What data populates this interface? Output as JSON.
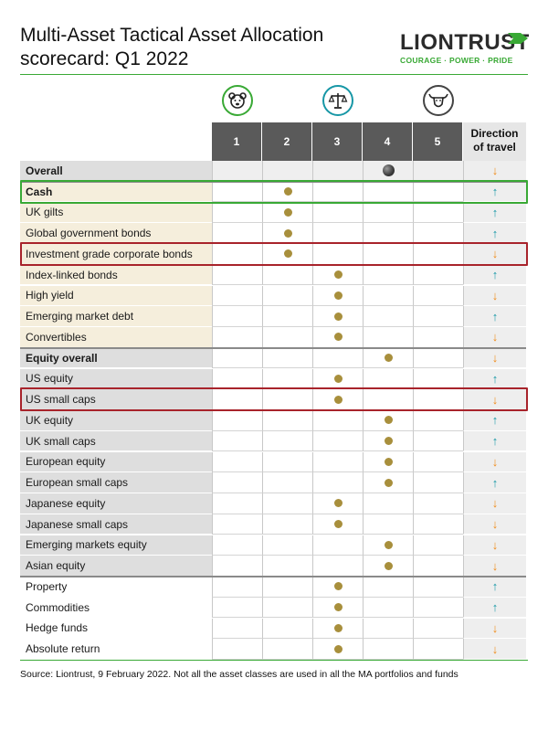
{
  "title_line1": "Multi-Asset Tactical Asset Allocation",
  "title_line2": "scorecard: Q1 2022",
  "logo": {
    "name": "LIONTRUST",
    "tagline": "COURAGE · POWER · PRIDE"
  },
  "columns": [
    "1",
    "2",
    "3",
    "4",
    "5"
  ],
  "direction_header_line1": "Direction",
  "direction_header_line2": "of travel",
  "icons": [
    "bear-icon",
    "scales-icon",
    "bull-icon"
  ],
  "colors": {
    "bond_label_bg": "#f5eedc",
    "equity_label_bg": "#dedede",
    "alt_label_bg": "#ffffff",
    "dot": "#a88f3c",
    "up_arrow": "#1797a6",
    "down_arrow": "#f08a17",
    "highlight_green": "#39a935",
    "highlight_red": "#a8232b"
  },
  "rows": [
    {
      "label": "Overall",
      "score": 4,
      "direction": "down",
      "bold": true,
      "group": "overall"
    },
    {
      "label": "Cash",
      "score": 2,
      "direction": "up",
      "bold": true,
      "group": "bond"
    },
    {
      "label": "UK gilts",
      "score": 2,
      "direction": "up",
      "bold": false,
      "group": "bond"
    },
    {
      "label": "Global government bonds",
      "score": 2,
      "direction": "up",
      "bold": false,
      "group": "bond"
    },
    {
      "label": "Investment grade corporate bonds",
      "score": 2,
      "direction": "down",
      "bold": false,
      "group": "bond"
    },
    {
      "label": "Index-linked bonds",
      "score": 3,
      "direction": "up",
      "bold": false,
      "group": "bond"
    },
    {
      "label": "High yield",
      "score": 3,
      "direction": "down",
      "bold": false,
      "group": "bond"
    },
    {
      "label": "Emerging market debt",
      "score": 3,
      "direction": "up",
      "bold": false,
      "group": "bond"
    },
    {
      "label": "Convertibles",
      "score": 3,
      "direction": "down",
      "bold": false,
      "group": "bond"
    },
    {
      "label": "Equity overall",
      "score": 4,
      "direction": "down",
      "bold": true,
      "group": "equity"
    },
    {
      "label": "US equity",
      "score": 3,
      "direction": "up",
      "bold": false,
      "group": "equity"
    },
    {
      "label": "US small caps",
      "score": 3,
      "direction": "down",
      "bold": false,
      "group": "equity"
    },
    {
      "label": "UK equity",
      "score": 4,
      "direction": "up",
      "bold": false,
      "group": "equity"
    },
    {
      "label": "UK small caps",
      "score": 4,
      "direction": "up",
      "bold": false,
      "group": "equity"
    },
    {
      "label": "European equity",
      "score": 4,
      "direction": "down",
      "bold": false,
      "group": "equity"
    },
    {
      "label": "European small caps",
      "score": 4,
      "direction": "up",
      "bold": false,
      "group": "equity"
    },
    {
      "label": "Japanese equity",
      "score": 3,
      "direction": "down",
      "bold": false,
      "group": "equity"
    },
    {
      "label": "Japanese small caps",
      "score": 3,
      "direction": "down",
      "bold": false,
      "group": "equity"
    },
    {
      "label": "Emerging markets equity",
      "score": 4,
      "direction": "down",
      "bold": false,
      "group": "equity"
    },
    {
      "label": "Asian equity",
      "score": 4,
      "direction": "down",
      "bold": false,
      "group": "equity"
    },
    {
      "label": "Property",
      "score": 3,
      "direction": "up",
      "bold": false,
      "group": "alt"
    },
    {
      "label": "Commodities",
      "score": 3,
      "direction": "up",
      "bold": false,
      "group": "alt"
    },
    {
      "label": "Hedge funds",
      "score": 3,
      "direction": "down",
      "bold": false,
      "group": "alt"
    },
    {
      "label": "Absolute return",
      "score": 3,
      "direction": "down",
      "bold": false,
      "group": "alt"
    }
  ],
  "highlighted_rows": [
    {
      "label": "Cash",
      "color": "green"
    },
    {
      "label": "Investment grade corporate bonds",
      "color": "red"
    },
    {
      "label": "US small caps",
      "color": "red"
    }
  ],
  "source": "Source: Liontrust, 9 February 2022. Not all the asset classes are used in all the MA portfolios and funds"
}
